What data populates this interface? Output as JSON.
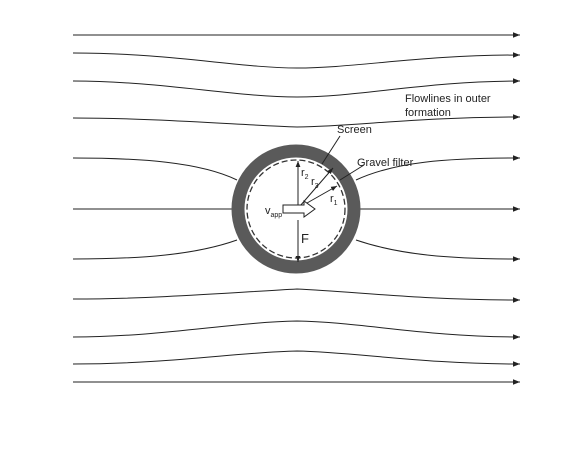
{
  "labels": {
    "flowlines_line1": "Flowlines in outer",
    "flowlines_line2": "formation",
    "screen": "Screen",
    "gravel_filter": "Gravel filter",
    "r": "r",
    "r2_sub": "2",
    "r3_sub": "3",
    "r1_sub": "1",
    "v": "v",
    "v_sub": "app",
    "f": "F"
  },
  "colors": {
    "line": "#222222",
    "ring": "#5a5a5a",
    "arrow_fill": "#ffffff"
  }
}
